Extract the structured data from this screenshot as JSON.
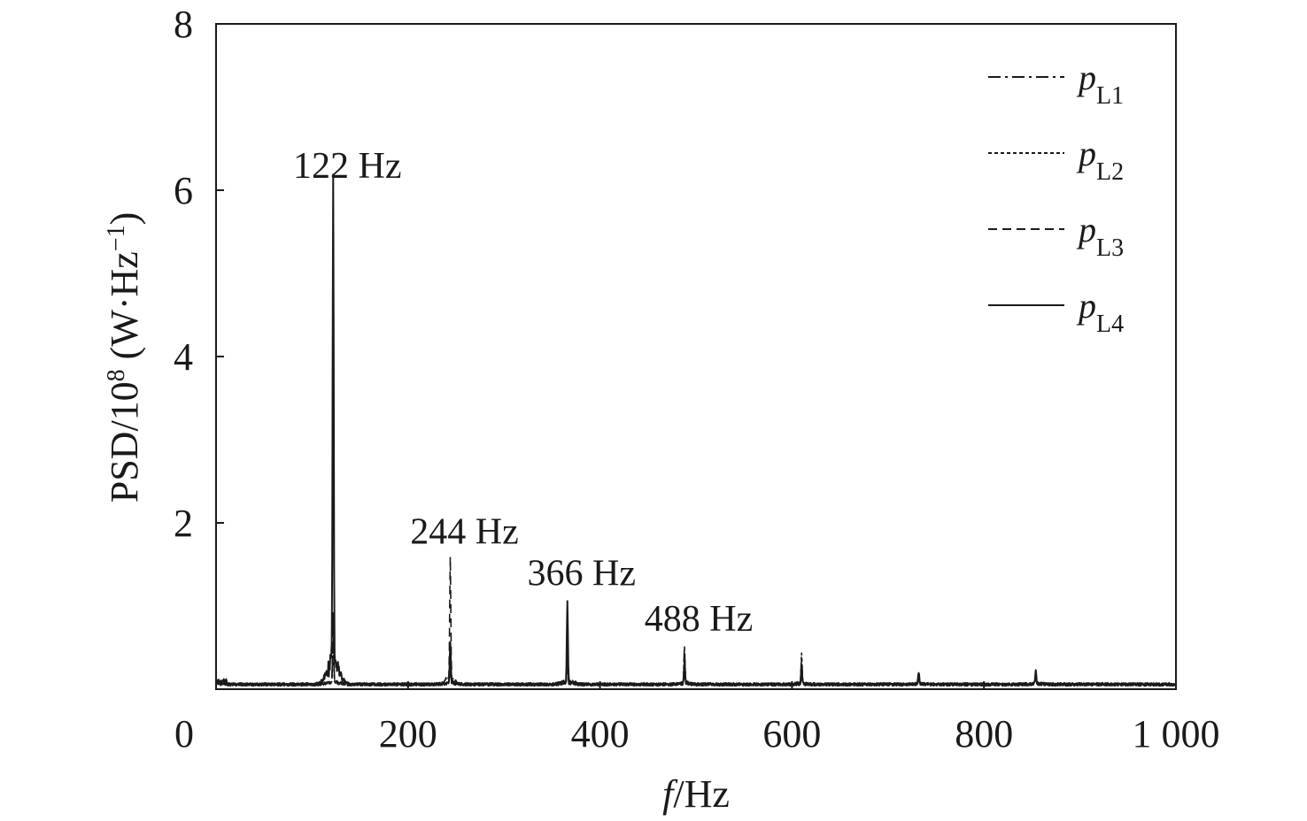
{
  "chart_data": {
    "type": "line",
    "title": "",
    "xlabel": {
      "italic": "f",
      "rest": "/Hz"
    },
    "ylabel": {
      "main": "PSD/10",
      "sup1": "8",
      "mid": " (W·Hz",
      "sup2": "−1",
      "end": ")"
    },
    "xlim": [
      0,
      1000
    ],
    "ylim": [
      0,
      8
    ],
    "x_ticks": [
      0,
      200,
      400,
      600,
      800,
      1000
    ],
    "x_tick_labels": [
      "0",
      "200",
      "400",
      "600",
      "800",
      "1 000"
    ],
    "y_ticks": [
      2,
      4,
      6,
      8
    ],
    "y_tick_labels": [
      "2",
      "4",
      "6",
      "8"
    ],
    "grid": false,
    "legend_position": "top-right",
    "series": [
      {
        "name": "pL1",
        "name_main": "p",
        "name_sub": "L1",
        "dash": "dash-dot",
        "peaks": [
          [
            122,
            0.7
          ],
          [
            244,
            0.25
          ],
          [
            366,
            0.3
          ],
          [
            488,
            0.45
          ],
          [
            610,
            0.3
          ],
          [
            732,
            0.12
          ],
          [
            854,
            0.15
          ]
        ]
      },
      {
        "name": "pL2",
        "name_main": "p",
        "name_sub": "L2",
        "dash": "dotted",
        "peaks": [
          [
            122,
            0.5
          ],
          [
            244,
            0.3
          ],
          [
            366,
            0.35
          ],
          [
            488,
            0.4
          ],
          [
            610,
            0.35
          ],
          [
            732,
            0.1
          ],
          [
            854,
            0.12
          ]
        ]
      },
      {
        "name": "pL3",
        "name_main": "p",
        "name_sub": "L3",
        "dash": "dashed",
        "peaks": [
          [
            122,
            0.85
          ],
          [
            244,
            1.48
          ],
          [
            366,
            0.4
          ],
          [
            488,
            0.3
          ],
          [
            610,
            0.28
          ],
          [
            732,
            0.1
          ],
          [
            854,
            0.1
          ]
        ]
      },
      {
        "name": "pL4",
        "name_main": "p",
        "name_sub": "L4",
        "dash": "solid",
        "peaks": [
          [
            122,
            5.95
          ],
          [
            244,
            0.5
          ],
          [
            366,
            0.95
          ],
          [
            488,
            0.25
          ],
          [
            610,
            0.15
          ],
          [
            732,
            0.15
          ],
          [
            854,
            0.18
          ]
        ]
      }
    ],
    "annotations": [
      {
        "text": "122 Hz",
        "x": 122,
        "y": 6.15
      },
      {
        "text": "244 Hz",
        "x": 244,
        "y": 1.75
      },
      {
        "text": "366 Hz",
        "x": 366,
        "y": 1.25
      },
      {
        "text": "488 Hz",
        "x": 488,
        "y": 0.7
      }
    ]
  }
}
